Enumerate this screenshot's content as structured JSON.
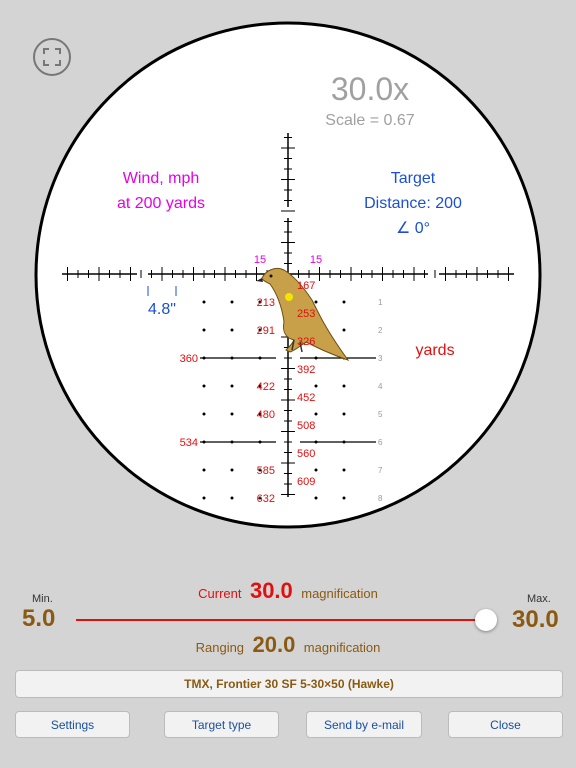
{
  "scope": {
    "zoom_text": "30.0x",
    "scale_text": "Scale = 0.67",
    "wind_line1": "Wind, mph",
    "wind_line2": "at 200 yards",
    "target_line1": "Target",
    "target_line2": "Distance: 200",
    "target_line3": "∠ 0°",
    "wind_left_value": "15",
    "wind_right_value": "15",
    "holdover_value": "4.8\"",
    "yards_label": "yards",
    "range_left": [
      "213",
      "291",
      "360",
      "422",
      "480",
      "534",
      "585",
      "632"
    ],
    "range_right": [
      "167",
      "253",
      "326",
      "392",
      "452",
      "508",
      "560",
      "609"
    ],
    "row_numbers": [
      "1",
      "2",
      "3",
      "4",
      "5",
      "6",
      "7",
      "8"
    ]
  },
  "magnification": {
    "min_label": "Min.",
    "min_value": "5.0",
    "max_label": "Max.",
    "max_value": "30.0",
    "current_label": "Current",
    "current_value": "30.0",
    "current_suffix": "magnification",
    "ranging_label": "Ranging",
    "ranging_value": "20.0",
    "ranging_suffix": "magnification",
    "slider_fraction": 1.0
  },
  "scope_name": "TMX, Frontier 30 SF 5-30×50 (Hawke)",
  "buttons": {
    "settings": "Settings",
    "target_type": "Target type",
    "send_email": "Send by e-mail",
    "close": "Close"
  },
  "colors": {
    "wind": "#e600e6",
    "target": "#1a4fd6",
    "range": "#e01010",
    "brown": "#8a5a12"
  },
  "icons": {
    "expand": "expand-icon",
    "target_bird": "crow-target-icon"
  }
}
